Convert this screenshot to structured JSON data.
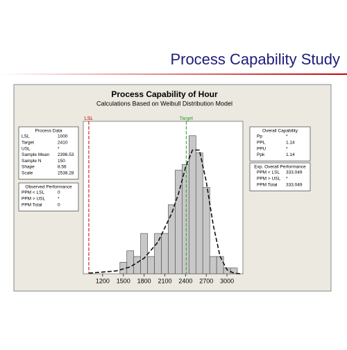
{
  "slide_title": "Process Capability Study",
  "chart_data": {
    "type": "histogram",
    "title": "Process Capability of Hour",
    "subtitle": "Calculations Based on Weibull Distribution Model",
    "bins": [
      1450,
      1550,
      1650,
      1750,
      1850,
      1950,
      2050,
      2150,
      2250,
      2350,
      2450,
      2550,
      2650,
      2750,
      2850,
      2950,
      3050,
      3150
    ],
    "values": [
      2,
      4,
      3,
      7,
      3,
      7,
      7,
      12,
      18,
      19,
      24,
      21,
      15,
      3,
      3,
      1,
      1
    ],
    "color": "#c8c8c8",
    "xlim": [
      920,
      3230
    ],
    "ylim": [
      0,
      26.5
    ],
    "xticks": [
      1200,
      1500,
      1800,
      2100,
      2400,
      2700,
      3000
    ],
    "curve": {
      "x": [
        1000,
        1400,
        1600,
        1800,
        2000,
        2200,
        2300,
        2400,
        2500,
        2600,
        2700,
        2800,
        2900,
        3000,
        3100,
        3200
      ],
      "values": [
        0.1,
        0.5,
        1.2,
        2.7,
        5.5,
        10.5,
        14,
        18.5,
        21.5,
        21.5,
        16,
        8.5,
        3,
        0.7,
        0.1,
        0
      ]
    },
    "reference_lines": [
      {
        "label": "LSL",
        "value": 1000,
        "color": "#c00000"
      },
      {
        "label": "Target",
        "value": 2410,
        "color": "#2e9e2e"
      }
    ],
    "panels": [
      {
        "title": "Process Data",
        "rows": [
          [
            "LSL",
            "1000"
          ],
          [
            "Target",
            "2410"
          ],
          [
            "USL",
            "*"
          ],
          [
            "Sample Mean",
            "2396.53"
          ],
          [
            "Sample N",
            "150"
          ],
          [
            "Shape",
            "8.56"
          ],
          [
            "Scale",
            "2538.28"
          ]
        ]
      },
      {
        "title": "Observed Performance",
        "rows": [
          [
            "PPM < LSL",
            "0"
          ],
          [
            "PPM > USL",
            "*"
          ],
          [
            "PPM Total",
            "0"
          ]
        ]
      },
      {
        "title": "Overall Capability",
        "rows": [
          [
            "Pp",
            "*"
          ],
          [
            "PPL",
            "1.14"
          ],
          [
            "PPU",
            "*"
          ],
          [
            "Ppk",
            "1.14"
          ]
        ]
      },
      {
        "title": "Exp. Overall Performance",
        "rows": [
          [
            "PPM < LSL",
            "333.049"
          ],
          [
            "PPM > USL",
            "*"
          ],
          [
            "PPM Total",
            "333.049"
          ]
        ]
      }
    ]
  }
}
